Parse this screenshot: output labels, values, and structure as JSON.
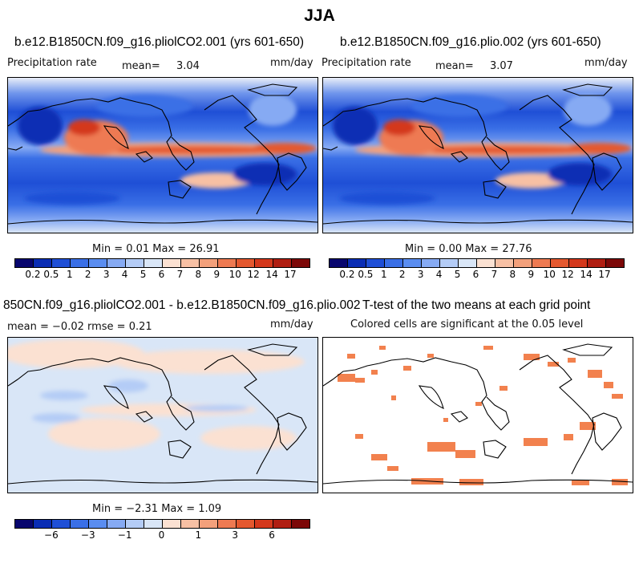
{
  "figure": {
    "title": "JJA"
  },
  "panels": [
    {
      "id": "p1",
      "title": "b.e12.B1850CN.f09_g16.pliolCO2.001 (yrs 601-650)",
      "left_label": "Precipitation rate",
      "mean_label": "mean=",
      "mean_value": "3.04",
      "units": "mm/day",
      "minmax_text": "Min =   0.01  Max =   26.91"
    },
    {
      "id": "p2",
      "title": "b.e12.B1850CN.f09_g16.plio.002 (yrs 601-650)",
      "left_label": "Precipitation rate",
      "mean_label": "mean=",
      "mean_value": "3.07",
      "units": "mm/day",
      "minmax_text": "Min =   0.00  Max =   27.76"
    },
    {
      "id": "p3",
      "title": "850CN.f09_g16.pliolCO2.001 - b.e12.B1850CN.f09_g16.plio.002",
      "left_label": "mean =  −0.02      rmse =    0.21",
      "units": "mm/day",
      "minmax_text": "Min =  −2.31  Max =    1.09"
    },
    {
      "id": "p4",
      "title": "T-test of the two means at each grid point",
      "left_label": "Colored cells are significant at the 0.05 level"
    }
  ],
  "colorbars": {
    "precip": {
      "colors": [
        "#08066e",
        "#0a2db4",
        "#1f4fd6",
        "#3a6fe6",
        "#5a8df0",
        "#86aaf3",
        "#b4ccf6",
        "#d9e6f7",
        "#fbe1d2",
        "#f7c0a4",
        "#f3a07b",
        "#ee7a52",
        "#e4582f",
        "#d4381c",
        "#b01e12",
        "#7c0808"
      ],
      "ticks": [
        "0.2",
        "0.5",
        "1",
        "2",
        "3",
        "4",
        "5",
        "6",
        "7",
        "8",
        "9",
        "10",
        "12",
        "14",
        "17"
      ]
    },
    "diff": {
      "colors": [
        "#08066e",
        "#0a2db4",
        "#1f4fd6",
        "#3a6fe6",
        "#5a8df0",
        "#86aaf3",
        "#b4ccf6",
        "#d9e6f7",
        "#fbe1d2",
        "#f7c0a4",
        "#f3a07b",
        "#ee7a52",
        "#e4582f",
        "#d4381c",
        "#b01e12",
        "#7c0808"
      ],
      "ticks": [
        "−6",
        "−3",
        "−1",
        "0",
        "1",
        "3",
        "6"
      ]
    }
  }
}
